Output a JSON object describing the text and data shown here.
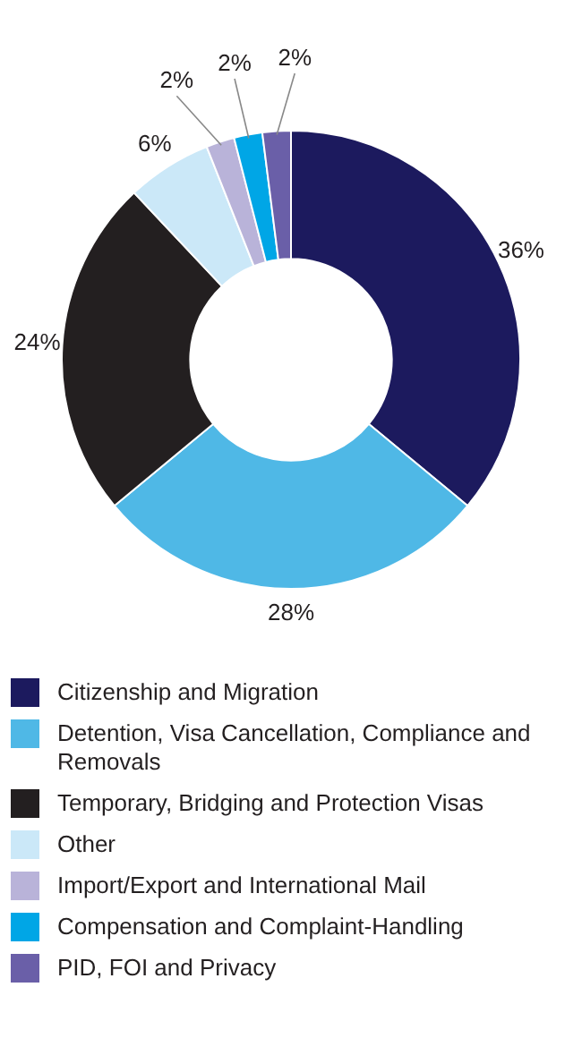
{
  "chart_data": {
    "type": "donut",
    "categories": [
      "Citizenship and Migration",
      "Detention, Visa Cancellation, Compliance and Removals",
      "Temporary, Bridging and Protection Visas",
      "Other",
      "Import/Export and International Mail",
      "Compensation and Complaint-Handling",
      "PID, FOI and Privacy"
    ],
    "values": [
      36,
      28,
      24,
      6,
      2,
      2,
      2
    ],
    "colors": [
      "#1c1a5e",
      "#4fb8e6",
      "#231f20",
      "#cbe8f8",
      "#b9b3d9",
      "#00a6e6",
      "#6a5fa8"
    ],
    "value_labels": [
      "36%",
      "28%",
      "24%",
      "6%",
      "2%",
      "2%",
      "2%"
    ],
    "legend": "bottom"
  }
}
